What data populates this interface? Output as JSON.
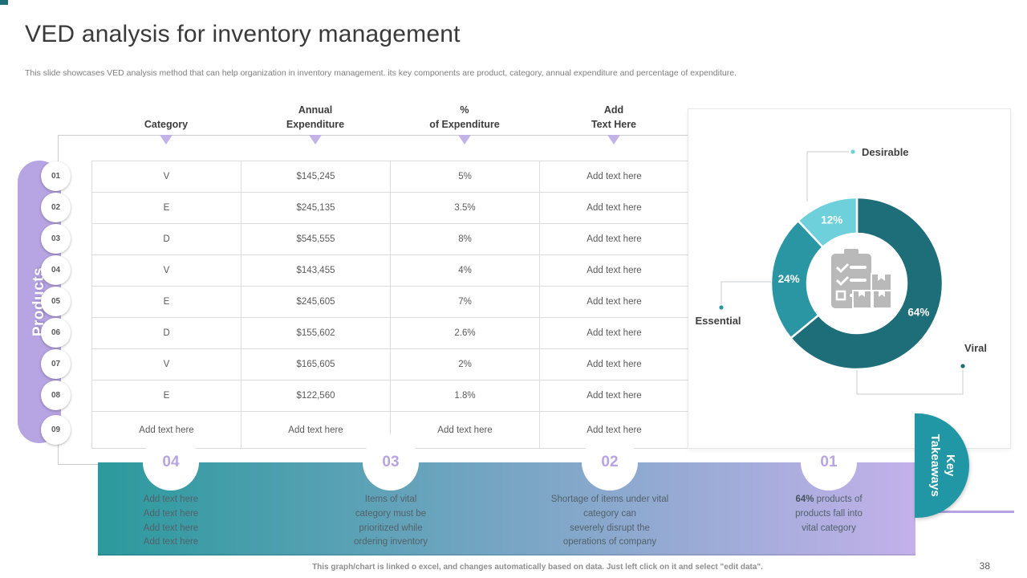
{
  "slide": {
    "title": "VED analysis for inventory management",
    "subtitle": "This slide showcases VED analysis method that can help organization in inventory management. its key components are product, category, annual expenditure and percentage of expenditure.",
    "footer_note": "This graph/chart is linked o excel, and changes automatically based on data. Just left click on it and select \"edit data\".",
    "page_number": "38"
  },
  "products_panel": {
    "label": "Products"
  },
  "table": {
    "headers": [
      [
        "Category"
      ],
      [
        "Annual",
        "Expenditure"
      ],
      [
        "%",
        "of Expenditure"
      ],
      [
        "Add",
        "Text Here"
      ]
    ],
    "rows": [
      {
        "num": "01",
        "category": "V",
        "annual_expenditure": "$145,245",
        "percent_of_expenditure": "5%",
        "note": "Add text here"
      },
      {
        "num": "02",
        "category": "E",
        "annual_expenditure": "$245,135",
        "percent_of_expenditure": "3.5%",
        "note": "Add text here"
      },
      {
        "num": "03",
        "category": "D",
        "annual_expenditure": "$545,555",
        "percent_of_expenditure": "8%",
        "note": "Add text here"
      },
      {
        "num": "04",
        "category": "V",
        "annual_expenditure": "$143,455",
        "percent_of_expenditure": "4%",
        "note": "Add text here"
      },
      {
        "num": "05",
        "category": "E",
        "annual_expenditure": "$245,605",
        "percent_of_expenditure": "7%",
        "note": "Add text here"
      },
      {
        "num": "06",
        "category": "D",
        "annual_expenditure": "$155,602",
        "percent_of_expenditure": "2.6%",
        "note": "Add text here"
      },
      {
        "num": "07",
        "category": "V",
        "annual_expenditure": "$165,605",
        "percent_of_expenditure": "2%",
        "note": "Add text here"
      },
      {
        "num": "08",
        "category": "E",
        "annual_expenditure": "$122,560",
        "percent_of_expenditure": "1.8%",
        "note": "Add text here"
      },
      {
        "num": "09",
        "category": "Add text here",
        "annual_expenditure": "Add text here",
        "percent_of_expenditure": "Add text here",
        "note": "Add text here"
      }
    ]
  },
  "chart_data": {
    "type": "donut",
    "title": "",
    "slices": [
      {
        "label": "Viral",
        "value": 64,
        "color": "#1e6e79"
      },
      {
        "label": "Essential",
        "value": 24,
        "color": "#2b96a3"
      },
      {
        "label": "Desirable",
        "value": 12,
        "color": "#6ed0da"
      }
    ],
    "value_label_format": "percent",
    "legend_position": "callouts",
    "center_icon": "inventory-clipboard-icon"
  },
  "takeaways": {
    "title_lines": [
      "Key",
      "Takeaways"
    ],
    "items": [
      {
        "number": "04",
        "lines": [
          "Add text here",
          "Add text here",
          "Add text here",
          "Add text here"
        ],
        "bold_prefix": ""
      },
      {
        "number": "03",
        "lines": [
          "Items of vital",
          "category must be",
          "prioritized while",
          "ordering inventory"
        ],
        "bold_prefix": ""
      },
      {
        "number": "02",
        "lines": [
          "Shortage of items under vital",
          "category can",
          "severely disrupt the",
          "operations of company"
        ],
        "bold_prefix": ""
      },
      {
        "number": "01",
        "lines": [
          "64% products of",
          "products fall into",
          "vital category"
        ],
        "bold_prefix": "64%"
      }
    ]
  },
  "colors": {
    "accent_purple": "#b7a4e3",
    "teal_dark": "#1e6e79",
    "teal_medium": "#2b96a3",
    "teal_light": "#6ed0da",
    "takeaways_circle": "#2196a5",
    "bar_gradient_start": "#2b9a9d",
    "bar_gradient_end": "#c3b1ea"
  }
}
